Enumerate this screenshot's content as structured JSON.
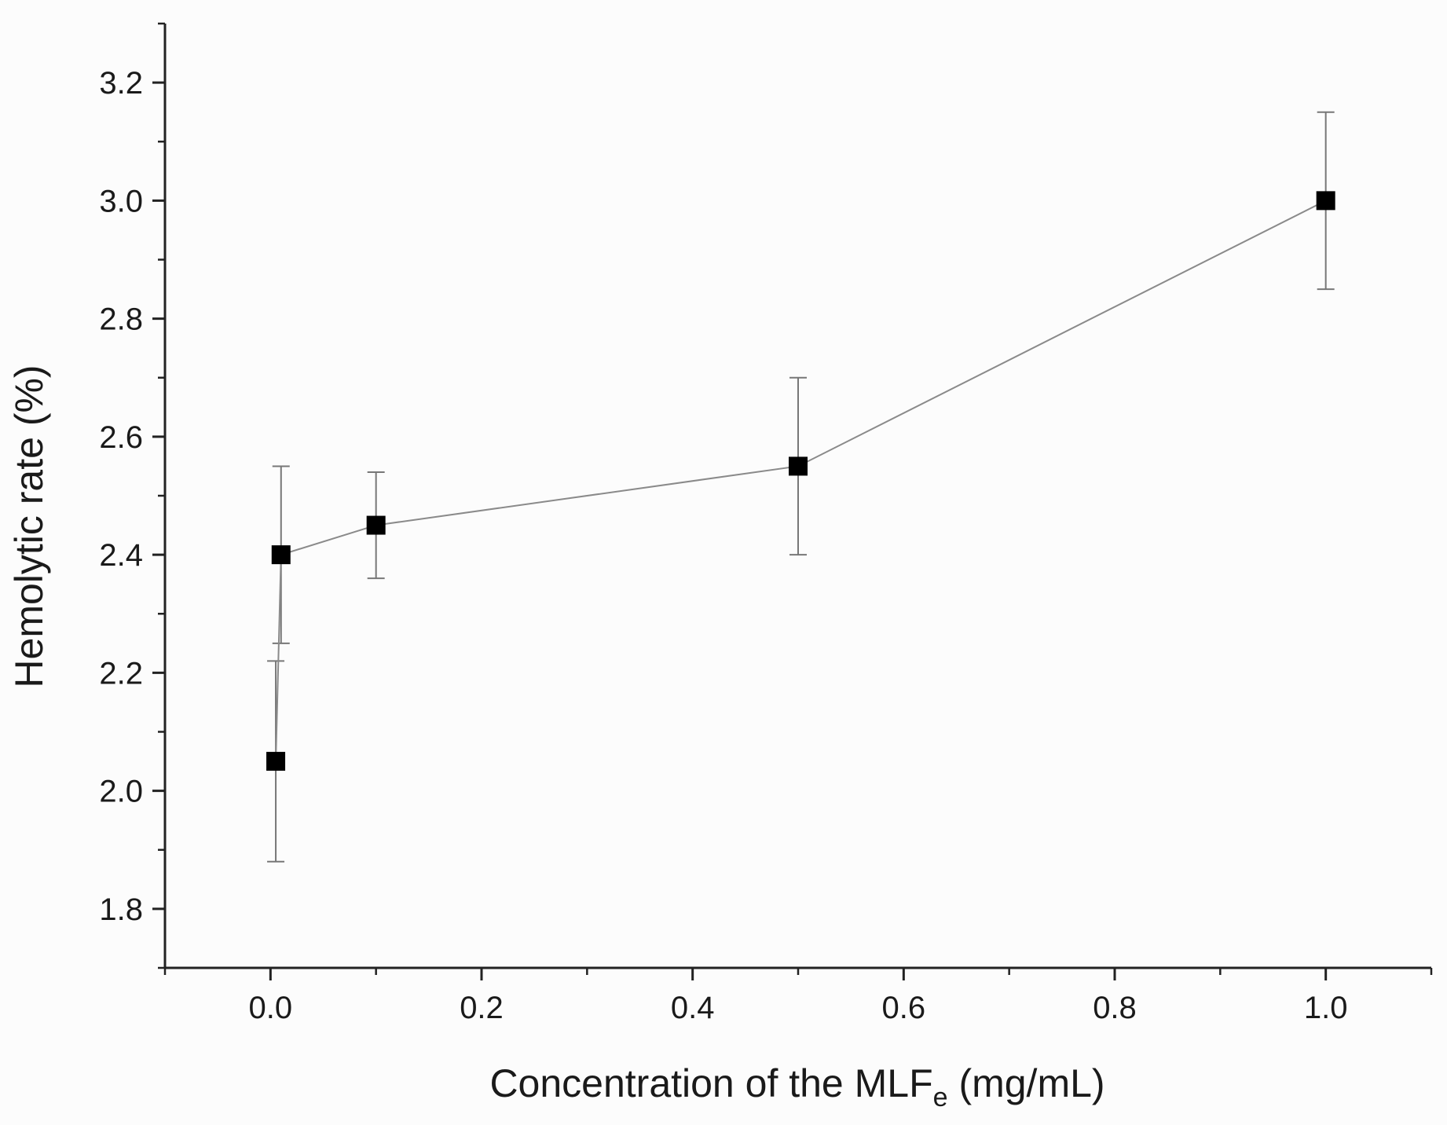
{
  "chart_data": {
    "type": "line",
    "title": "",
    "xlabel_main": "Concentration of the MLF",
    "xlabel_subscript": "e",
    "xlabel_suffix": " (mg/mL)",
    "ylabel": "Hemolytic rate (%)",
    "xlim": [
      -0.1,
      1.1
    ],
    "ylim": [
      1.7,
      3.3
    ],
    "x_ticks": [
      0.0,
      0.2,
      0.4,
      0.6,
      0.8,
      1.0
    ],
    "x_tick_labels": [
      "0.0",
      "0.2",
      "0.4",
      "0.6",
      "0.8",
      "1.0"
    ],
    "x_minor_ticks": [
      -0.1,
      0.1,
      0.3,
      0.5,
      0.7,
      0.9,
      1.1
    ],
    "y_ticks": [
      1.8,
      2.0,
      2.2,
      2.4,
      2.6,
      2.8,
      3.0,
      3.2
    ],
    "y_tick_labels": [
      "1.8",
      "2.0",
      "2.2",
      "2.4",
      "2.6",
      "2.8",
      "3.0",
      "3.2"
    ],
    "y_minor_ticks": [
      1.7,
      1.9,
      2.1,
      2.3,
      2.5,
      2.7,
      2.9,
      3.1,
      3.3
    ],
    "grid": false,
    "series": [
      {
        "name": "Hemolytic rate",
        "marker": "square",
        "x": [
          0.005,
          0.01,
          0.1,
          0.5,
          1.0
        ],
        "y": [
          2.05,
          2.4,
          2.45,
          2.55,
          3.0
        ],
        "y_err_low": [
          1.88,
          2.25,
          2.36,
          2.4,
          2.85
        ],
        "y_err_high": [
          2.22,
          2.55,
          2.54,
          2.7,
          3.15
        ]
      }
    ],
    "colors": {
      "line": "#8a8a8a",
      "marker": "#000000",
      "axis": "#222222",
      "errorbar": "#777777"
    }
  }
}
